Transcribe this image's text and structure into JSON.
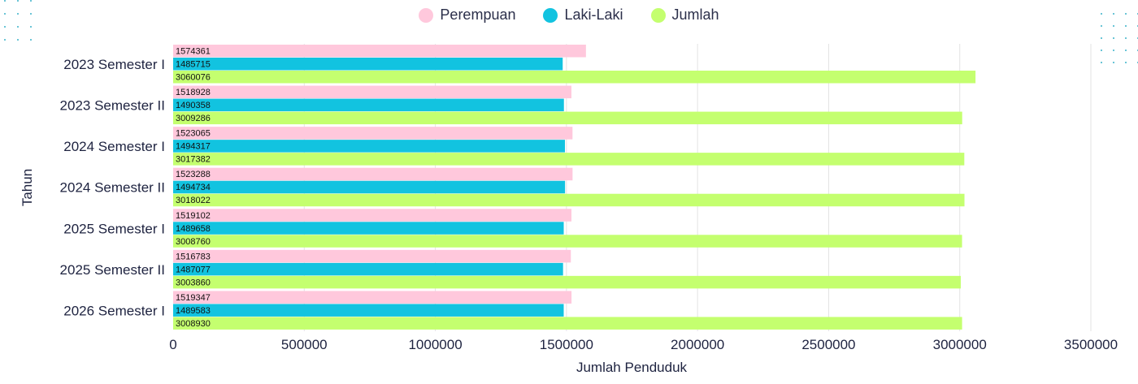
{
  "chart_data": {
    "type": "bar",
    "orientation": "horizontal",
    "categories": [
      "2023 Semester I",
      "2023 Semester II",
      "2024 Semester I",
      "2024 Semester II",
      "2025 Semester I",
      "2025 Semester II",
      "2026 Semester I"
    ],
    "series": [
      {
        "name": "Perempuan",
        "color": "#ffc8dc",
        "values": [
          1574361,
          1518928,
          1523065,
          1523288,
          1519102,
          1516783,
          1519347
        ]
      },
      {
        "name": "Laki-Laki",
        "color": "#12c3e0",
        "values": [
          1485715,
          1490358,
          1494317,
          1494734,
          1489658,
          1487077,
          1489583
        ]
      },
      {
        "name": "Jumlah",
        "color": "#c4ff6f",
        "values": [
          3060076,
          3009286,
          3017382,
          3018022,
          3008760,
          3003860,
          3008930
        ]
      }
    ],
    "xlabel": "Jumlah Penduduk",
    "ylabel": "Tahun",
    "xlim": [
      0,
      3500000
    ],
    "xticks": [
      "0",
      "500000",
      "1000000",
      "1500000",
      "2000000",
      "2500000",
      "3000000",
      "3500000"
    ],
    "grid": true,
    "legend_position": "top-center",
    "data_labels": "inside-bar-start"
  }
}
